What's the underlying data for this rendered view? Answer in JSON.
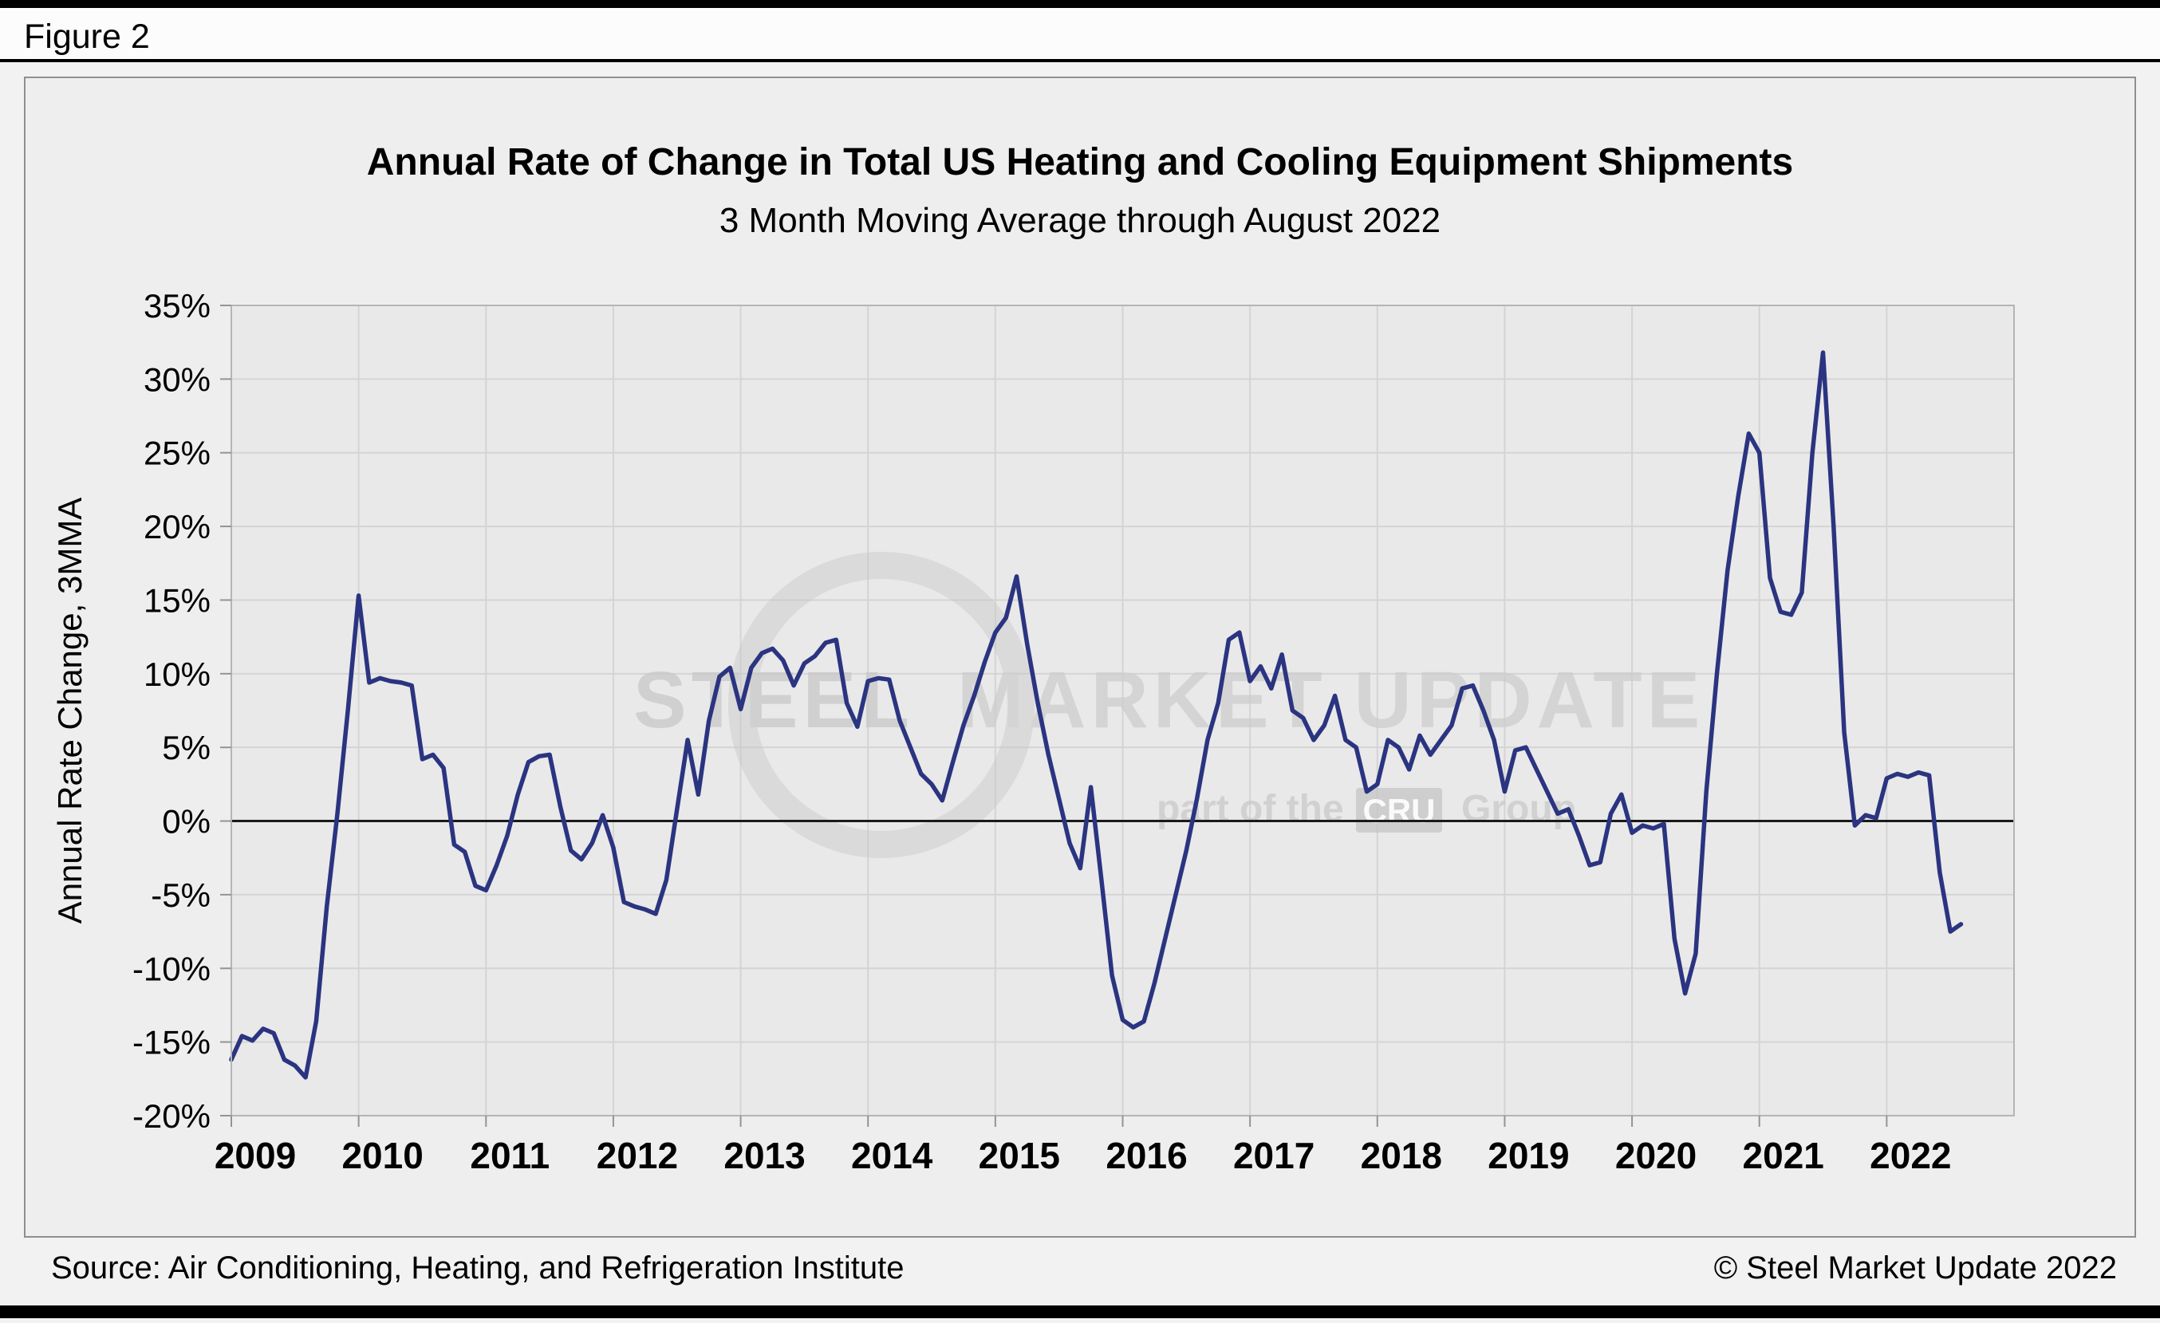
{
  "figure_label": "Figure 2",
  "title": "Annual Rate of Change in Total US Heating and Cooling Equipment Shipments",
  "subtitle": "3 Month Moving Average through August 2022",
  "ylabel": "Annual Rate Change, 3MMA",
  "source": "Source: Air Conditioning, Heating, and Refrigeration Institute",
  "copyright": "© Steel Market Update 2022",
  "watermark": {
    "word1": "STEEL",
    "word2": "MARKET UPDATE",
    "sub_pre": "part of the",
    "sub_box": "CRU",
    "sub_post": "Group"
  },
  "chart_data": {
    "type": "line",
    "title": "Annual Rate of Change in Total US Heating and Cooling Equipment Shipments",
    "subtitle": "3 Month Moving Average through August 2022",
    "ylabel": "Annual Rate Change, 3MMA",
    "ylim": [
      -20,
      35
    ],
    "ytick_step": 5,
    "ytick_labels": [
      "35%",
      "30%",
      "25%",
      "20%",
      "15%",
      "10%",
      "5%",
      "0%",
      "-5%",
      "-10%",
      "-15%",
      "-20%"
    ],
    "year_labels": [
      "2009",
      "2010",
      "2011",
      "2012",
      "2013",
      "2014",
      "2015",
      "2016",
      "2017",
      "2018",
      "2019",
      "2020",
      "2021",
      "2022"
    ],
    "x_start_month": "2009-01",
    "x_end_month": "2022-08",
    "axis_x_end": "2022-12",
    "grid": true,
    "legend": "none",
    "line_color": "#2b3480",
    "zero_line_color": "#1a1a1a",
    "series": [
      {
        "name": "Annual Rate Change, 3MMA",
        "values": [
          -16.2,
          -14.6,
          -14.9,
          -14.1,
          -14.4,
          -16.2,
          -16.6,
          -17.4,
          -13.6,
          -5.8,
          0.5,
          7.6,
          15.3,
          9.4,
          9.7,
          9.5,
          9.4,
          9.2,
          4.2,
          4.5,
          3.6,
          -1.6,
          -2.1,
          -4.4,
          -4.7,
          -3.0,
          -1.0,
          1.8,
          4.0,
          4.4,
          4.5,
          1.0,
          -2.0,
          -2.6,
          -1.5,
          0.4,
          -1.8,
          -5.5,
          -5.8,
          -6.0,
          -6.3,
          -4.0,
          0.8,
          5.5,
          1.8,
          6.8,
          9.8,
          10.4,
          7.6,
          10.4,
          11.4,
          11.7,
          10.9,
          9.2,
          10.7,
          11.2,
          12.1,
          12.3,
          8.0,
          6.4,
          9.5,
          9.7,
          9.6,
          6.8,
          5.0,
          3.2,
          2.5,
          1.4,
          4.0,
          6.5,
          8.5,
          10.8,
          12.8,
          13.8,
          16.6,
          12.0,
          8.0,
          4.5,
          1.5,
          -1.5,
          -3.2,
          2.3,
          -4.0,
          -10.5,
          -13.5,
          -14.0,
          -13.6,
          -11.0,
          -8.0,
          -5.0,
          -2.0,
          1.5,
          5.5,
          8.0,
          12.3,
          12.8,
          9.5,
          10.5,
          9.0,
          11.3,
          7.5,
          7.0,
          5.5,
          6.5,
          8.5,
          5.5,
          5.0,
          2.0,
          2.5,
          5.5,
          5.0,
          3.5,
          5.8,
          4.5,
          5.5,
          6.5,
          9.0,
          9.2,
          7.5,
          5.5,
          2.0,
          4.8,
          5.0,
          3.5,
          2.0,
          0.5,
          0.8,
          -1.0,
          -3.0,
          -2.8,
          0.5,
          1.8,
          -0.8,
          -0.3,
          -0.5,
          -0.2,
          -8.0,
          -11.7,
          -9.0,
          2.0,
          10.0,
          17.0,
          22.0,
          26.3,
          25.0,
          16.5,
          14.2,
          14.0,
          15.5,
          25.0,
          31.8,
          20.0,
          6.0,
          -0.3,
          0.4,
          0.2,
          2.9,
          3.2,
          3.0,
          3.3,
          3.1,
          -3.5,
          -7.5,
          -7.0
        ]
      }
    ]
  }
}
